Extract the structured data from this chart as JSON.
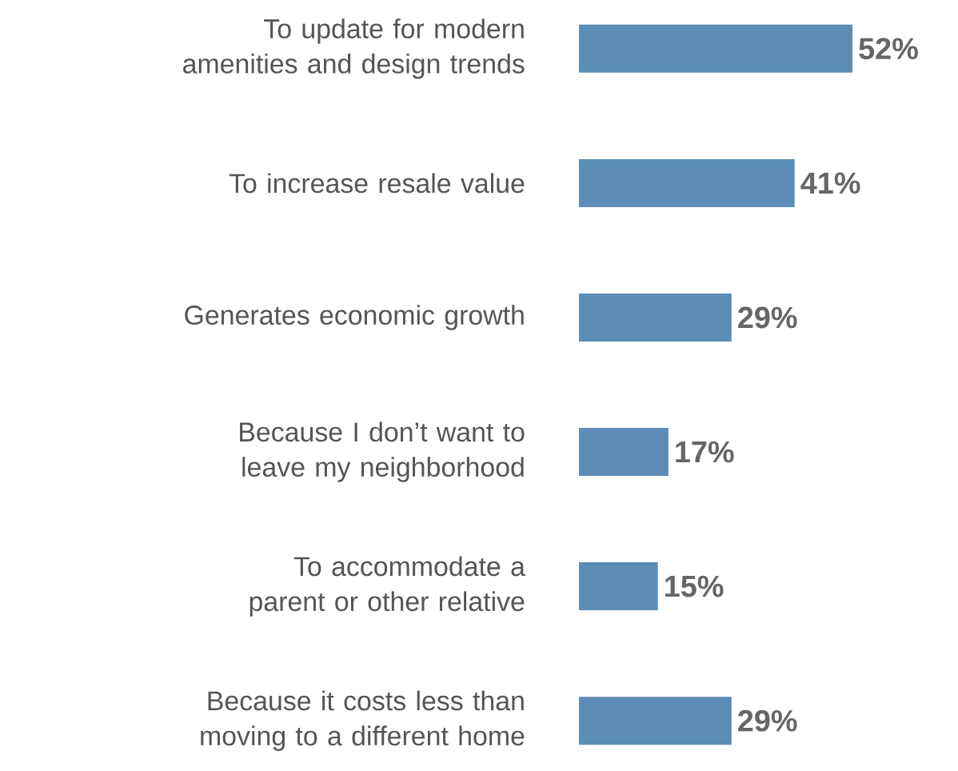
{
  "chart_data": {
    "type": "bar",
    "orientation": "horizontal",
    "categories": [
      "To update for modern amenities and design trends",
      "To increase resale value",
      "Generates economic growth",
      "Because I don’t want to leave my neighborhood",
      "To accommodate a parent or other relative",
      "Because it costs less than moving to a different home"
    ],
    "values": [
      52,
      41,
      29,
      17,
      15,
      29
    ],
    "value_labels": [
      "52%",
      "41%",
      "29%",
      "17%",
      "15%",
      "29%"
    ],
    "color": "#5b8db6"
  }
}
